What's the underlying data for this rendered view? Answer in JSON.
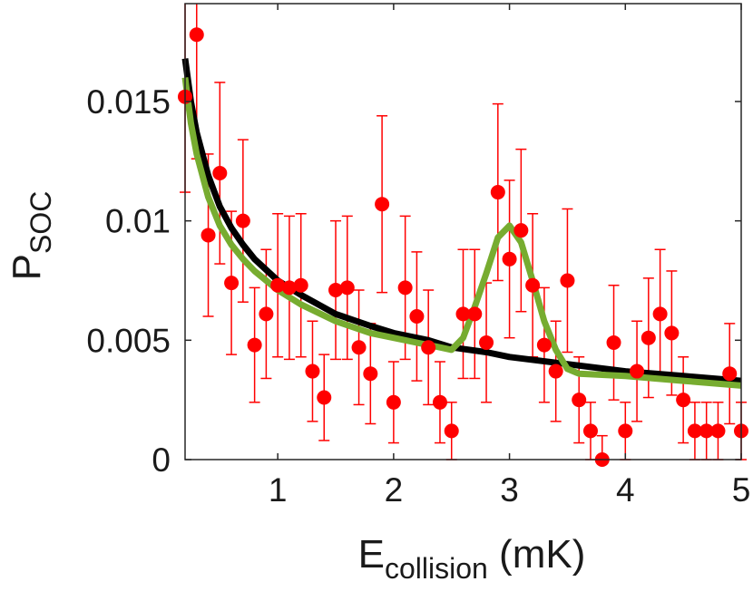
{
  "chart_data": {
    "type": "scatter",
    "xlabel": {
      "main": "E",
      "sub": "collision",
      "unit": " (mK)"
    },
    "ylabel": {
      "main": "P",
      "sub": "SOC"
    },
    "xlim": [
      0.2,
      5.0
    ],
    "ylim": [
      0,
      0.0191
    ],
    "xticks": [
      1,
      2,
      3,
      4,
      5
    ],
    "xtick_labels": [
      "1",
      "2",
      "3",
      "4",
      "5"
    ],
    "yticks": [
      0,
      0.005,
      0.01,
      0.015
    ],
    "ytick_labels": [
      "0",
      "0.005",
      "0.01",
      "0.015"
    ],
    "grid": false,
    "colors": {
      "points": "#ff0000",
      "fit_black": "#000000",
      "fit_green": "#77ac30",
      "axes": "#262626"
    },
    "series": [
      {
        "kind": "errorbar-scatter",
        "x": [
          0.2,
          0.3,
          0.4,
          0.5,
          0.6,
          0.7,
          0.8,
          0.9,
          1.0,
          1.1,
          1.2,
          1.3,
          1.4,
          1.5,
          1.6,
          1.7,
          1.8,
          1.9,
          2.0,
          2.1,
          2.2,
          2.3,
          2.4,
          2.5,
          2.6,
          2.7,
          2.8,
          2.9,
          3.0,
          3.1,
          3.2,
          3.3,
          3.4,
          3.5,
          3.6,
          3.7,
          3.8,
          3.9,
          4.0,
          4.1,
          4.2,
          4.3,
          4.4,
          4.5,
          4.6,
          4.7,
          4.8,
          4.9,
          5.0
        ],
        "y": [
          0.0152,
          0.0178,
          0.0094,
          0.012,
          0.0074,
          0.01,
          0.0048,
          0.0061,
          0.0073,
          0.0072,
          0.0073,
          0.0037,
          0.0026,
          0.0071,
          0.0072,
          0.0047,
          0.0036,
          0.0107,
          0.0024,
          0.0072,
          0.006,
          0.0047,
          0.0024,
          0.0012,
          0.0061,
          0.0061,
          0.0049,
          0.0112,
          0.0084,
          0.0096,
          0.0073,
          0.0048,
          0.0037,
          0.0075,
          0.0025,
          0.0012,
          0.0,
          0.0049,
          0.0012,
          0.0037,
          0.0051,
          0.0061,
          0.0053,
          0.0025,
          0.0012,
          0.0012,
          0.0012,
          0.0036,
          0.0012
        ],
        "err": [
          0.004,
          0.0052,
          0.0034,
          0.0038,
          0.003,
          0.0034,
          0.0024,
          0.0027,
          0.003,
          0.003,
          0.003,
          0.0021,
          0.0018,
          0.0029,
          0.003,
          0.0024,
          0.0021,
          0.0037,
          0.0017,
          0.003,
          0.0027,
          0.0024,
          0.0017,
          0.0012,
          0.0027,
          0.0027,
          0.0025,
          0.0037,
          0.0033,
          0.0034,
          0.003,
          0.0024,
          0.0021,
          0.003,
          0.0018,
          0.0012,
          0.001,
          0.0024,
          0.0012,
          0.0021,
          0.0025,
          0.0027,
          0.0026,
          0.0018,
          0.0012,
          0.0012,
          0.0012,
          0.0021,
          0.0012
        ]
      },
      {
        "kind": "line",
        "x": [
          0.2,
          0.25,
          0.3,
          0.4,
          0.5,
          0.6,
          0.7,
          0.8,
          1.0,
          1.2,
          1.5,
          1.8,
          2.0,
          2.3,
          2.5,
          2.8,
          3.0,
          3.5,
          4.0,
          4.5,
          5.0
        ],
        "y": [
          0.0168,
          0.015,
          0.0137,
          0.0119,
          0.0106,
          0.0097,
          0.009,
          0.0084,
          0.0075,
          0.0069,
          0.0061,
          0.0056,
          0.0053,
          0.005,
          0.0047,
          0.0045,
          0.0043,
          0.004,
          0.0037,
          0.0035,
          0.0033
        ]
      },
      {
        "kind": "line",
        "x": [
          0.2,
          0.25,
          0.3,
          0.4,
          0.5,
          0.6,
          0.7,
          0.8,
          1.0,
          1.2,
          1.5,
          1.8,
          2.0,
          2.2,
          2.4,
          2.5,
          2.6,
          2.7,
          2.8,
          2.9,
          3.0,
          3.1,
          3.2,
          3.3,
          3.4,
          3.5,
          3.6,
          4.0,
          4.5,
          5.0
        ],
        "y": [
          0.016,
          0.0141,
          0.0128,
          0.011,
          0.0098,
          0.009,
          0.0084,
          0.0079,
          0.0071,
          0.0065,
          0.0058,
          0.0053,
          0.0051,
          0.0049,
          0.0047,
          0.0046,
          0.0051,
          0.0064,
          0.0078,
          0.0093,
          0.0098,
          0.0091,
          0.0075,
          0.0058,
          0.0046,
          0.0038,
          0.0036,
          0.0035,
          0.0033,
          0.0031
        ]
      }
    ]
  }
}
